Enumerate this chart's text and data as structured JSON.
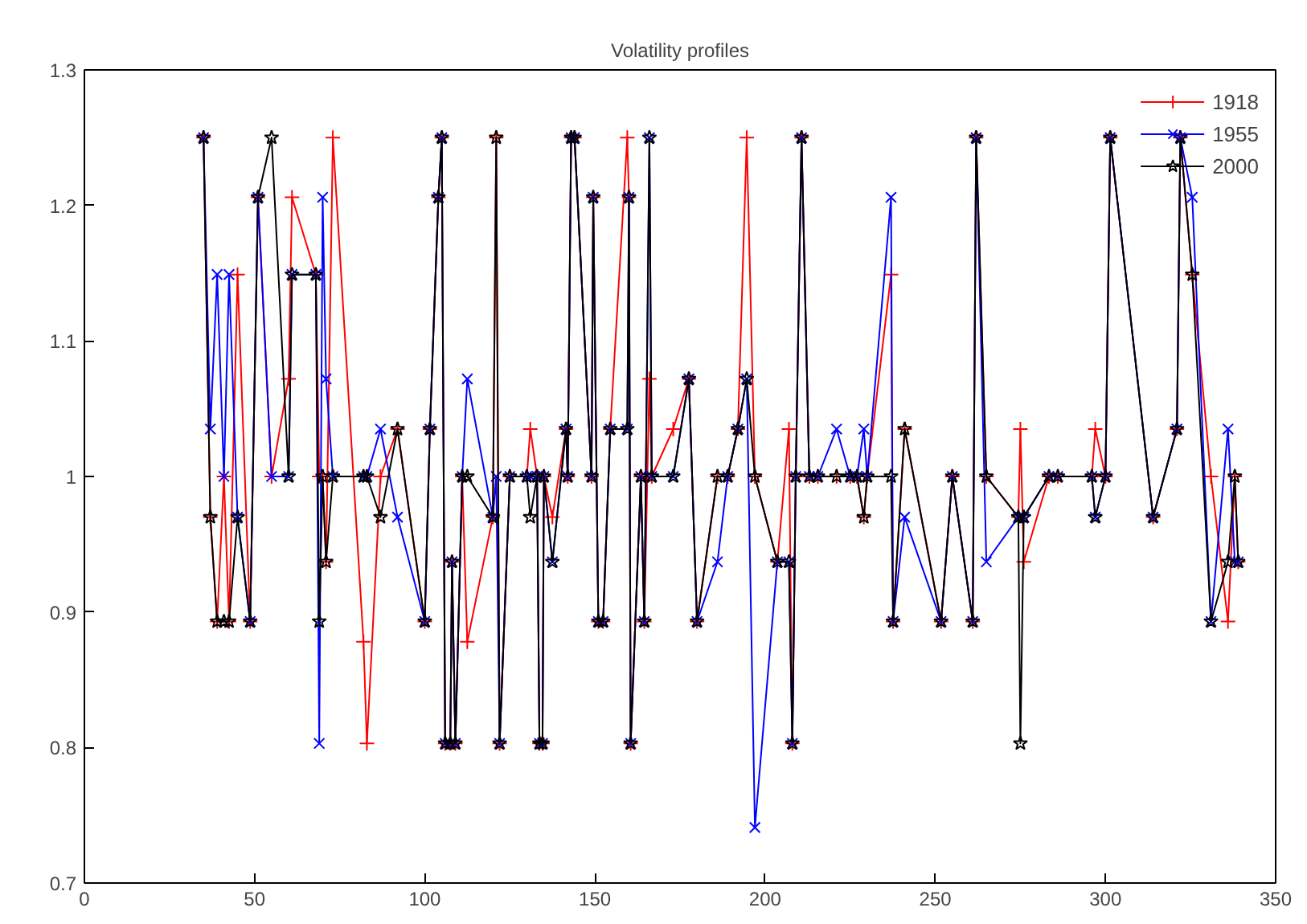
{
  "chart_data": {
    "type": "line",
    "title": "Volatility profiles",
    "line_style": "solid",
    "legend": "top right",
    "grid": false,
    "xlim": [
      0,
      350
    ],
    "xticks": [
      0,
      50,
      100,
      150,
      200,
      250,
      300,
      350
    ],
    "ylim": [
      0.7,
      1.3
    ],
    "yticks": [
      0.7,
      0.8,
      0.9,
      1,
      1.1,
      1.2,
      1.3
    ],
    "x": [
      35,
      37,
      39,
      41,
      42.5,
      45,
      48.7,
      51,
      55,
      60,
      61,
      68,
      69,
      70,
      71,
      73,
      82,
      83,
      87,
      92,
      100,
      101.5,
      104,
      105,
      106,
      107.5,
      108,
      109,
      111,
      112.5,
      120,
      121,
      122,
      125,
      130,
      131,
      133,
      133.7,
      134.6,
      135,
      137.5,
      141.5,
      142,
      143,
      144,
      149,
      149.5,
      151,
      152.4,
      154.5,
      159.5,
      160,
      160.5,
      163.5,
      164.5,
      166,
      166.7,
      173,
      177.6,
      180,
      186,
      189,
      192,
      194.6,
      197,
      203.6,
      207,
      208,
      209,
      210.7,
      213,
      215.5,
      221,
      225,
      227,
      229,
      230,
      237,
      237.6,
      241,
      251.7,
      255,
      261,
      262,
      265,
      274.4,
      275,
      276,
      283.4,
      286,
      296,
      297,
      300,
      301.4,
      314,
      321,
      322,
      325.5,
      331,
      336,
      338,
      339
    ],
    "series": [
      {
        "name": "1918",
        "color": "#ff0000",
        "marker": "cross",
        "values": [
          1.25,
          0.97,
          0.893,
          1.0,
          0.893,
          1.149,
          0.893,
          1.206,
          1.0,
          1.072,
          1.206,
          1.149,
          1.0,
          1.0,
          0.937,
          1.25,
          0.878,
          0.803,
          1.0,
          1.035,
          0.893,
          1.035,
          1.206,
          1.25,
          0.803,
          0.803,
          0.937,
          0.803,
          1.0,
          0.878,
          0.97,
          1.25,
          0.803,
          1.0,
          1.0,
          1.035,
          1.0,
          0.803,
          0.803,
          1.0,
          0.97,
          1.035,
          1.0,
          1.25,
          1.25,
          1.0,
          1.206,
          0.893,
          0.893,
          1.035,
          1.25,
          1.206,
          0.803,
          1.0,
          0.893,
          1.072,
          1.0,
          1.035,
          1.072,
          0.893,
          1.0,
          1.0,
          1.035,
          1.25,
          1.0,
          0.937,
          1.035,
          0.803,
          1.0,
          1.25,
          1.0,
          1.0,
          1.0,
          1.0,
          1.0,
          0.97,
          1.0,
          1.149,
          0.893,
          1.035,
          0.893,
          1.0,
          0.893,
          1.25,
          1.0,
          0.97,
          1.035,
          0.937,
          1.0,
          1.0,
          1.0,
          1.035,
          1.0,
          1.25,
          0.97,
          1.035,
          1.25,
          1.149,
          1.0,
          0.893,
          1.0,
          0.937
        ]
      },
      {
        "name": "1955",
        "color": "#0000ff",
        "marker": "x",
        "values": [
          1.25,
          1.035,
          1.149,
          1.0,
          1.149,
          0.97,
          0.893,
          1.206,
          1.0,
          1.0,
          1.149,
          1.149,
          0.803,
          1.206,
          1.072,
          1.0,
          1.0,
          1.0,
          1.035,
          0.97,
          0.893,
          1.035,
          1.206,
          1.25,
          0.803,
          0.803,
          0.937,
          0.803,
          1.0,
          1.072,
          0.97,
          1.0,
          0.803,
          1.0,
          1.0,
          1.0,
          1.0,
          0.803,
          0.803,
          1.0,
          0.937,
          1.035,
          1.0,
          1.25,
          1.25,
          1.0,
          1.206,
          0.893,
          0.893,
          1.035,
          1.035,
          1.206,
          0.803,
          1.0,
          0.893,
          1.25,
          1.0,
          1.0,
          1.072,
          0.893,
          0.937,
          1.0,
          1.035,
          1.072,
          0.741,
          0.937,
          0.937,
          0.803,
          1.0,
          1.25,
          1.0,
          1.0,
          1.035,
          1.0,
          1.0,
          1.035,
          1.0,
          1.206,
          0.893,
          0.97,
          0.893,
          1.0,
          0.893,
          1.25,
          0.937,
          0.97,
          0.97,
          0.97,
          1.0,
          1.0,
          1.0,
          0.97,
          1.0,
          1.25,
          0.97,
          1.035,
          1.25,
          1.206,
          0.893,
          1.035,
          0.937,
          0.937
        ]
      },
      {
        "name": "2000",
        "color": "#000000",
        "marker": "star",
        "values": [
          1.25,
          0.97,
          0.893,
          0.893,
          0.893,
          0.97,
          0.893,
          1.206,
          1.25,
          1.0,
          1.149,
          1.149,
          0.893,
          1.0,
          0.937,
          1.0,
          1.0,
          1.0,
          0.97,
          1.035,
          0.893,
          1.035,
          1.206,
          1.25,
          0.803,
          0.803,
          0.937,
          0.803,
          1.0,
          1.0,
          0.97,
          1.25,
          0.803,
          1.0,
          1.0,
          0.97,
          1.0,
          0.803,
          0.803,
          1.0,
          0.937,
          1.035,
          1.0,
          1.25,
          1.25,
          1.0,
          1.206,
          0.893,
          0.893,
          1.035,
          1.035,
          1.206,
          0.803,
          1.0,
          0.893,
          1.25,
          1.0,
          1.0,
          1.072,
          0.893,
          1.0,
          1.0,
          1.035,
          1.072,
          1.0,
          0.937,
          0.937,
          0.803,
          1.0,
          1.25,
          1.0,
          1.0,
          1.0,
          1.0,
          1.0,
          0.97,
          1.0,
          1.0,
          0.893,
          1.035,
          0.893,
          1.0,
          0.893,
          1.25,
          1.0,
          0.97,
          0.803,
          0.97,
          1.0,
          1.0,
          1.0,
          0.97,
          1.0,
          1.25,
          0.97,
          1.035,
          1.25,
          1.149,
          0.893,
          0.937,
          1.0,
          0.937
        ]
      }
    ]
  }
}
